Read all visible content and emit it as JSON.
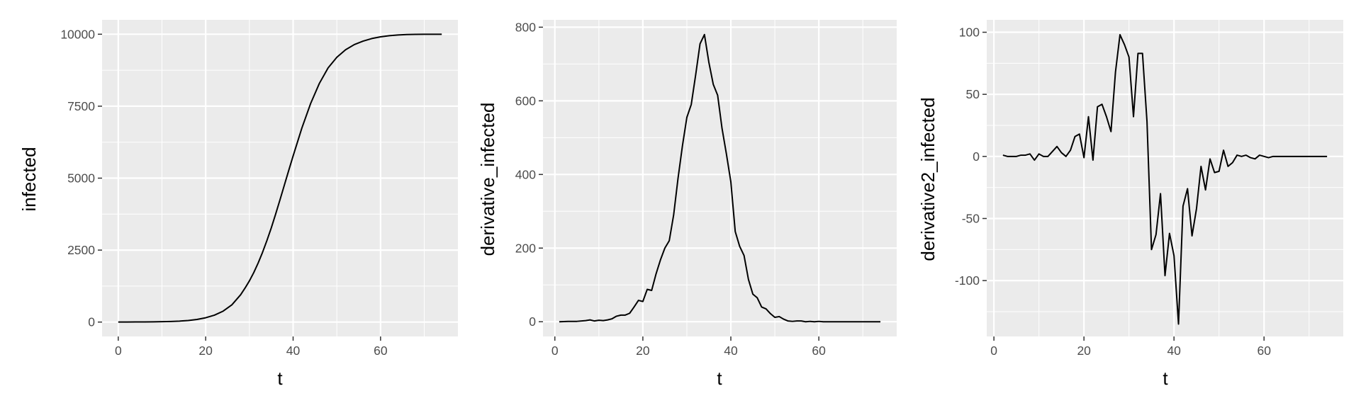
{
  "chart_data": [
    {
      "type": "line",
      "title": "",
      "xlabel": "t",
      "ylabel": "infected",
      "xlim": [
        -3.7,
        77.7
      ],
      "ylim": [
        -500,
        10500
      ],
      "xticks": [
        0,
        20,
        40,
        60
      ],
      "xtick_labels": [
        "0",
        "20",
        "40",
        "60"
      ],
      "yticks": [
        0,
        2500,
        5000,
        7500,
        10000
      ],
      "ytick_labels": [
        "0",
        "2500",
        "5000",
        "7500",
        "10000"
      ],
      "grid": true,
      "legend": "none",
      "line_color": "#000000",
      "panel_color": "#ebebeb",
      "series": [
        {
          "x": [
            0,
            2,
            4,
            6,
            8,
            10,
            12,
            14,
            16,
            18,
            20,
            22,
            24,
            26,
            28,
            29,
            30,
            31,
            32,
            33,
            34,
            35,
            36,
            37,
            38,
            39,
            40,
            42,
            44,
            46,
            48,
            50,
            52,
            54,
            56,
            58,
            60,
            62,
            64,
            66,
            68,
            70,
            72,
            74
          ],
          "values": [
            1,
            2,
            3,
            5,
            8,
            13,
            20,
            33,
            55,
            90,
            150,
            240,
            380,
            600,
            950,
            1180,
            1430,
            1720,
            2050,
            2420,
            2830,
            3270,
            3750,
            4250,
            4760,
            5270,
            5770,
            6740,
            7590,
            8290,
            8830,
            9200,
            9460,
            9640,
            9760,
            9850,
            9910,
            9950,
            9975,
            9990,
            9996,
            9998,
            9999,
            10000
          ]
        }
      ]
    },
    {
      "type": "line",
      "title": "",
      "xlabel": "t",
      "ylabel": "derivative_infected",
      "xlim": [
        -2.7,
        77.7
      ],
      "ylim": [
        -40,
        820
      ],
      "xticks": [
        0,
        20,
        40,
        60
      ],
      "xtick_labels": [
        "0",
        "20",
        "40",
        "60"
      ],
      "yticks": [
        0,
        200,
        400,
        600,
        800
      ],
      "ytick_labels": [
        "0",
        "200",
        "400",
        "600",
        "800"
      ],
      "grid": true,
      "legend": "none",
      "line_color": "#000000",
      "panel_color": "#ebebeb",
      "series": [
        {
          "x": [
            1,
            3,
            5,
            7,
            8,
            9,
            10,
            11,
            12,
            13,
            14,
            15,
            16,
            17,
            18,
            19,
            20,
            21,
            22,
            23,
            24,
            25,
            26,
            27,
            28,
            29,
            30,
            31,
            32,
            33,
            34,
            35,
            36,
            37,
            38,
            39,
            40,
            41,
            42,
            43,
            44,
            45,
            46,
            47,
            48,
            49,
            50,
            51,
            52,
            53,
            54,
            55,
            56,
            57,
            58,
            59,
            60,
            61,
            62,
            64,
            66,
            68,
            70,
            72,
            74
          ],
          "values": [
            0,
            1,
            1,
            3,
            5,
            2,
            4,
            3,
            5,
            8,
            15,
            18,
            18,
            23,
            40,
            58,
            55,
            88,
            85,
            130,
            168,
            200,
            220,
            290,
            390,
            478,
            555,
            590,
            670,
            755,
            780,
            705,
            645,
            615,
            525,
            455,
            380,
            245,
            205,
            180,
            115,
            75,
            65,
            40,
            35,
            22,
            12,
            14,
            7,
            2,
            1,
            2,
            2,
            0,
            1,
            0,
            1,
            0,
            0,
            0,
            0,
            0,
            0,
            0,
            0
          ]
        }
      ]
    },
    {
      "type": "line",
      "title": "",
      "xlabel": "t",
      "ylabel": "derivative2_infected",
      "xlim": [
        -1.6,
        77.6
      ],
      "ylim": [
        -145,
        110
      ],
      "xticks": [
        0,
        20,
        40,
        60
      ],
      "xtick_labels": [
        "0",
        "20",
        "40",
        "60"
      ],
      "yticks": [
        -100,
        -50,
        0,
        50,
        100
      ],
      "ytick_labels": [
        "-100",
        "-50",
        "0",
        "50",
        "100"
      ],
      "grid": true,
      "legend": "none",
      "line_color": "#000000",
      "panel_color": "#ebebeb",
      "series": [
        {
          "x": [
            2,
            3,
            4,
            5,
            6,
            7,
            8,
            9,
            10,
            11,
            12,
            13,
            14,
            15,
            16,
            17,
            18,
            19,
            20,
            21,
            22,
            23,
            24,
            25,
            26,
            27,
            28,
            29,
            30,
            31,
            32,
            33,
            34,
            35,
            36,
            37,
            38,
            39,
            40,
            41,
            42,
            43,
            44,
            45,
            46,
            47,
            48,
            49,
            50,
            51,
            52,
            53,
            54,
            55,
            56,
            57,
            58,
            59,
            60,
            61,
            62,
            63,
            64,
            66,
            68,
            70,
            72,
            74
          ],
          "values": [
            1,
            0,
            0,
            0,
            1,
            1,
            2,
            -3,
            2,
            0,
            0,
            4,
            8,
            3,
            0,
            5,
            16,
            18,
            -1,
            32,
            -3,
            40,
            42,
            32,
            20,
            68,
            98,
            90,
            80,
            32,
            83,
            83,
            28,
            -75,
            -63,
            -30,
            -96,
            -62,
            -80,
            -135,
            -40,
            -26,
            -64,
            -42,
            -8,
            -27,
            -2,
            -13,
            -12,
            5,
            -8,
            -5,
            1,
            0,
            1,
            -1,
            -2,
            1,
            0,
            -1,
            0,
            0,
            0,
            0,
            0,
            0,
            0,
            0
          ]
        }
      ]
    }
  ]
}
